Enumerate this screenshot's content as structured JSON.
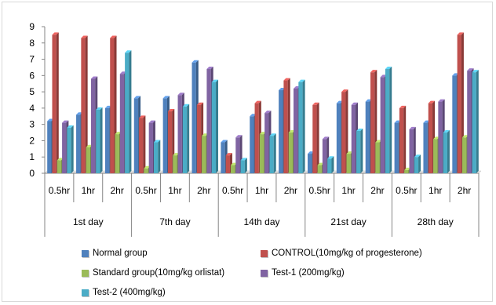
{
  "chart_data": {
    "type": "bar",
    "title": "",
    "xlabel": "",
    "ylabel": "",
    "ylim": [
      0,
      9
    ],
    "yticks": [
      0,
      1,
      2,
      3,
      4,
      5,
      6,
      7,
      8,
      9
    ],
    "grid": false,
    "legend_position": "bottom",
    "groups": [
      "1st day",
      "7th day",
      "14th day",
      "21st day",
      "28th day"
    ],
    "subcategories": [
      "0.5hr",
      "1hr",
      "2hr"
    ],
    "categories": [
      "1st day 0.5hr",
      "1st day 1hr",
      "1st day 2hr",
      "7th day 0.5hr",
      "7th day 1hr",
      "7th day 2hr",
      "14th day 0.5hr",
      "14th day 1hr",
      "14th day 2hr",
      "21st day 0.5hr",
      "21st day 1hr",
      "21st day 2hr",
      "28th day 0.5hr",
      "28th day 1hr",
      "28th day 2hr"
    ],
    "series": [
      {
        "name": "Normal group",
        "color": "#4f81bd",
        "values": [
          3.2,
          3.6,
          4.0,
          4.6,
          4.6,
          6.8,
          1.9,
          3.5,
          5.1,
          1.2,
          4.3,
          4.4,
          3.1,
          3.1,
          6.0
        ]
      },
      {
        "name": "CONTROL(10mg/kg of progesterone)",
        "color": "#c0504d",
        "values": [
          8.5,
          8.3,
          8.3,
          3.4,
          3.8,
          4.2,
          1.1,
          4.3,
          5.7,
          4.2,
          5.0,
          6.2,
          4.0,
          4.3,
          8.5
        ]
      },
      {
        "name": "Standard group(10mg/kg orlistat)",
        "color": "#9bbb59",
        "values": [
          0.8,
          1.6,
          2.4,
          0.3,
          1.1,
          2.3,
          0.5,
          2.4,
          2.5,
          0.5,
          1.2,
          1.9,
          0.2,
          2.1,
          2.2
        ]
      },
      {
        "name": "Test-1 (200mg/kg)",
        "color": "#8064a2",
        "values": [
          3.1,
          5.8,
          6.1,
          3.1,
          4.8,
          6.4,
          2.2,
          3.7,
          5.2,
          2.1,
          4.2,
          5.9,
          2.7,
          4.4,
          6.3
        ]
      },
      {
        "name": "Test-2 (400mg/kg)",
        "color": "#4bacc6",
        "values": [
          2.8,
          3.9,
          7.4,
          1.9,
          4.1,
          5.6,
          0.8,
          2.3,
          5.6,
          0.9,
          2.6,
          6.4,
          1.0,
          2.5,
          6.2
        ]
      }
    ]
  }
}
